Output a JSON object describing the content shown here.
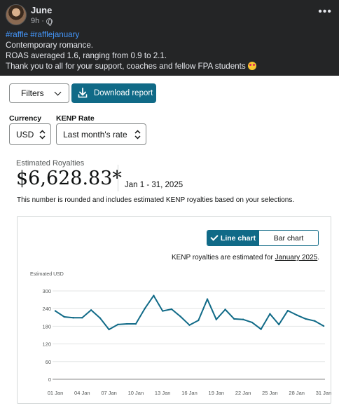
{
  "post": {
    "author": "June",
    "time": "9h",
    "more_icon": "more-horizontal-icon",
    "hashtags": "#raffle #rafflejanuary",
    "lines": [
      "Contemporary romance.",
      "ROAS averaged 1.6, ranging from 0.9 to 2.1.",
      "Thank you to all for your support, coaches and fellow FPA students"
    ],
    "emoji": "star-struck-emoji"
  },
  "toolbar": {
    "filters_label": "Filters",
    "download_label": "Download report",
    "accent": "#106a87"
  },
  "currency": {
    "label": "Currency",
    "value": "USD"
  },
  "kenp_rate": {
    "label": "KENP Rate",
    "value": "Last month's rate"
  },
  "royalties": {
    "label": "Estimated Royalties",
    "amount": "$6,628.83*",
    "date_range": "Jan 1 - 31, 2025",
    "note": "This number is rounded and includes estimated KENP royalties based on your selections."
  },
  "chart_toggle": {
    "line_label": "Line chart",
    "bar_label": "Bar chart",
    "active": "line"
  },
  "kenp_note": {
    "prefix": "KENP royalties are estimated for ",
    "link": "January 2025",
    "suffix": "."
  },
  "chart_data": {
    "type": "line",
    "ylabel": "Estimated USD",
    "ylim": [
      0,
      300
    ],
    "yticks": [
      0,
      60,
      120,
      180,
      240,
      300
    ],
    "xtick_labels": [
      "01 Jan",
      "04 Jan",
      "07 Jan",
      "10 Jan",
      "13 Jan",
      "16 Jan",
      "19 Jan",
      "22 Jan",
      "25 Jan",
      "28 Jan",
      "31 Jan"
    ],
    "grid": true,
    "color": "#106a87",
    "series": [
      {
        "x": [
          1,
          2,
          3,
          4,
          5,
          6,
          7,
          8,
          9,
          10,
          11,
          12,
          13,
          14,
          15,
          16,
          17,
          18,
          19,
          20,
          21,
          22,
          23,
          24,
          25,
          26,
          27,
          28,
          29,
          30,
          31
        ],
        "values": [
          232,
          212,
          209,
          209,
          235,
          208,
          169,
          186,
          188,
          188,
          240,
          284,
          232,
          238,
          213,
          184,
          200,
          272,
          203,
          237,
          205,
          203,
          193,
          170,
          222,
          186,
          233,
          218,
          205,
          198,
          181
        ]
      }
    ]
  }
}
